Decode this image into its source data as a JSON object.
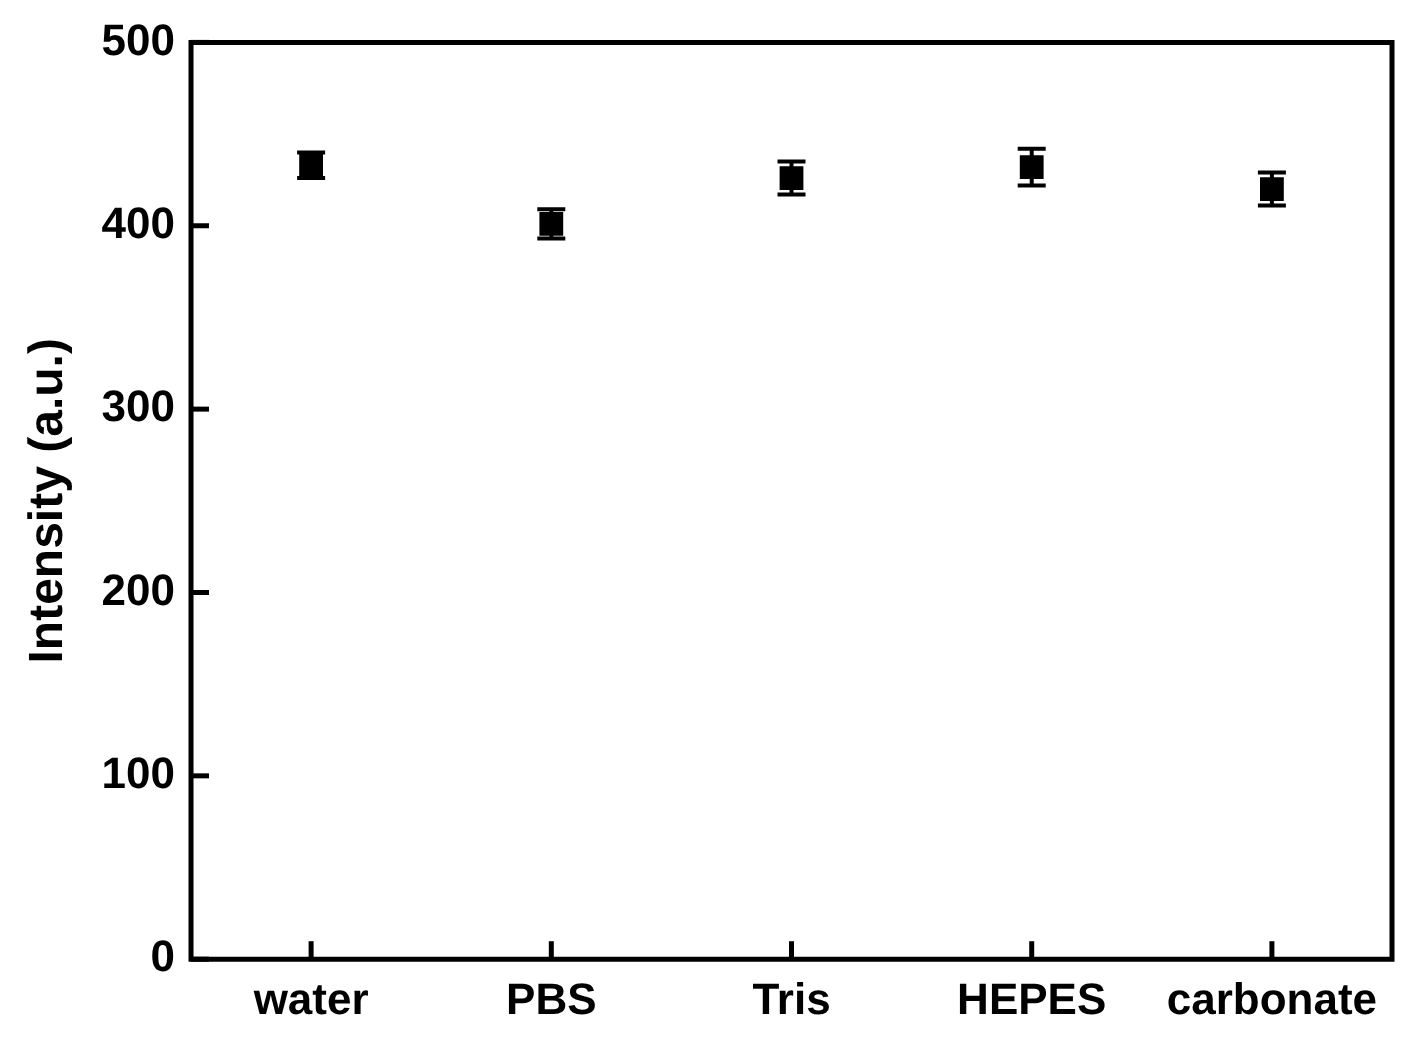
{
  "chart_data": {
    "type": "scatter",
    "ylabel": "Intensity (a.u.)",
    "categories": [
      "water",
      "PBS",
      "Tris",
      "HEPES",
      "carbonate"
    ],
    "values": [
      433,
      401,
      426,
      432,
      420
    ],
    "errors": [
      7,
      8,
      9,
      10,
      9
    ],
    "color": "#000000",
    "marker": "square",
    "ylim": [
      0,
      500
    ],
    "yticks": [
      0,
      100,
      200,
      300,
      400,
      500
    ],
    "grid": false,
    "legend": false
  }
}
